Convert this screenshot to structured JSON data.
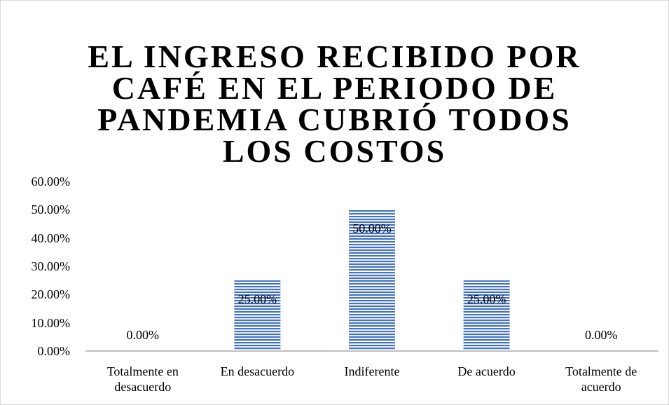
{
  "chart_data": {
    "type": "bar",
    "title": "EL INGRESO RECIBIDO POR CAFÉ EN EL PERIODO DE PANDEMIA CUBRIÓ TODOS LOS COSTOS",
    "categories": [
      "Totalmente en desacuerdo",
      "En desacuerdo",
      "Indiferente",
      "De acuerdo",
      "Totalmente de acuerdo"
    ],
    "values": [
      0,
      25,
      50,
      25,
      0
    ],
    "value_labels": [
      "0.00%",
      "25.00%",
      "50.00%",
      "25.00%",
      "0.00%"
    ],
    "color": "#4472c4",
    "ylim": [
      0,
      60
    ],
    "yticks": [
      {
        "value": 0,
        "label": "0.00%"
      },
      {
        "value": 10,
        "label": "10.00%"
      },
      {
        "value": 20,
        "label": "20.00%"
      },
      {
        "value": 30,
        "label": "30.00%"
      },
      {
        "value": 40,
        "label": "40.00%"
      },
      {
        "value": 50,
        "label": "50.00%"
      },
      {
        "value": 60,
        "label": "60.00%"
      }
    ],
    "grid": false
  }
}
